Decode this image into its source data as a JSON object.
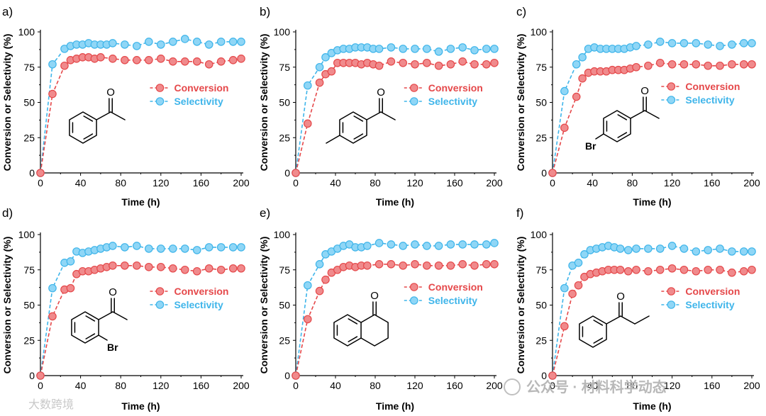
{
  "colors": {
    "conversion": "#e5484a",
    "conversion_fill": "#f08a8c",
    "selectivity": "#3fb5ea",
    "selectivity_fill": "#8fd6f6"
  },
  "watermarks": {
    "wechat": "公众号 · 材料科学动态",
    "corner": "大数跨境"
  },
  "chart_data": [
    {
      "panel": "a)",
      "type": "line",
      "xlabel": "Time (h)",
      "ylabel": "Conversion or Selectivity (%)",
      "xlim": [
        0,
        200
      ],
      "ylim": [
        0,
        100
      ],
      "xticks": [
        "0",
        "40",
        "80",
        "120",
        "160",
        "200"
      ],
      "yticks": [
        "0",
        "25",
        "50",
        "75",
        "100"
      ],
      "legend": [
        "Conversion",
        "Selectivity"
      ],
      "molecule": "acetophenone",
      "series": [
        {
          "name": "Conversion",
          "x": [
            0,
            12,
            24,
            30,
            36,
            42,
            48,
            54,
            60,
            72,
            84,
            96,
            108,
            120,
            132,
            144,
            156,
            168,
            180,
            192,
            200
          ],
          "y": [
            0,
            56,
            76,
            80,
            81,
            82,
            82,
            81,
            82,
            81,
            80,
            80,
            80,
            81,
            79,
            79,
            79,
            77,
            79,
            80,
            81
          ]
        },
        {
          "name": "Selectivity",
          "x": [
            0,
            12,
            24,
            30,
            36,
            42,
            48,
            54,
            60,
            66,
            72,
            84,
            96,
            108,
            120,
            132,
            144,
            156,
            168,
            180,
            192,
            200
          ],
          "y": [
            0,
            77,
            88,
            90,
            91,
            91,
            92,
            91,
            91,
            91,
            92,
            91,
            90,
            93,
            91,
            93,
            95,
            93,
            91,
            93,
            93,
            93
          ]
        }
      ]
    },
    {
      "panel": "b)",
      "type": "line",
      "xlabel": "Time (h)",
      "ylabel": "Conversion or Selectivity (%)",
      "xlim": [
        0,
        200
      ],
      "ylim": [
        0,
        100
      ],
      "xticks": [
        "0",
        "40",
        "80",
        "120",
        "160",
        "200"
      ],
      "yticks": [
        "0",
        "25",
        "50",
        "75",
        "100"
      ],
      "legend": [
        "Conversion",
        "Selectivity"
      ],
      "molecule": "4-methylacetophenone",
      "series": [
        {
          "name": "Conversion",
          "x": [
            0,
            12,
            24,
            30,
            36,
            42,
            48,
            54,
            60,
            66,
            72,
            78,
            84,
            96,
            108,
            120,
            132,
            144,
            156,
            168,
            180,
            192,
            200
          ],
          "y": [
            0,
            35,
            64,
            70,
            72,
            78,
            78,
            78,
            78,
            77,
            78,
            77,
            76,
            79,
            78,
            77,
            78,
            76,
            77,
            79,
            77,
            77,
            78
          ]
        },
        {
          "name": "Selectivity",
          "x": [
            0,
            12,
            24,
            30,
            36,
            42,
            48,
            54,
            60,
            66,
            72,
            78,
            84,
            96,
            108,
            120,
            132,
            144,
            156,
            168,
            180,
            192,
            200
          ],
          "y": [
            0,
            62,
            75,
            82,
            85,
            87,
            88,
            88,
            89,
            89,
            89,
            88,
            88,
            89,
            88,
            88,
            88,
            86,
            88,
            89,
            87,
            88,
            88
          ]
        }
      ]
    },
    {
      "panel": "c)",
      "type": "line",
      "xlabel": "Time (h)",
      "ylabel": "Conversion or Selectivity (%)",
      "xlim": [
        0,
        200
      ],
      "ylim": [
        0,
        100
      ],
      "xticks": [
        "0",
        "40",
        "80",
        "120",
        "160",
        "200"
      ],
      "yticks": [
        "0",
        "25",
        "50",
        "75",
        "100"
      ],
      "legend": [
        "Conversion",
        "Selectivity"
      ],
      "molecule": "4-bromoacetophenone",
      "atom_label": "Br",
      "series": [
        {
          "name": "Conversion",
          "x": [
            0,
            12,
            24,
            30,
            36,
            42,
            48,
            54,
            60,
            66,
            72,
            78,
            84,
            96,
            108,
            120,
            132,
            144,
            156,
            168,
            180,
            192,
            200
          ],
          "y": [
            0,
            32,
            54,
            67,
            71,
            72,
            72,
            72,
            73,
            73,
            73,
            74,
            75,
            76,
            78,
            77,
            77,
            77,
            76,
            76,
            77,
            77,
            77
          ]
        },
        {
          "name": "Selectivity",
          "x": [
            0,
            12,
            24,
            30,
            36,
            42,
            48,
            54,
            60,
            66,
            72,
            78,
            84,
            96,
            108,
            120,
            132,
            144,
            156,
            168,
            180,
            192,
            200
          ],
          "y": [
            0,
            58,
            77,
            82,
            88,
            89,
            88,
            88,
            88,
            88,
            88,
            89,
            90,
            91,
            93,
            92,
            92,
            92,
            91,
            90,
            91,
            92,
            92
          ]
        }
      ]
    },
    {
      "panel": "d)",
      "type": "line",
      "xlabel": "Time (h)",
      "ylabel": "Conversion or Selectivity (%)",
      "xlim": [
        0,
        200
      ],
      "ylim": [
        0,
        100
      ],
      "xticks": [
        "0",
        "40",
        "80",
        "120",
        "160",
        "200"
      ],
      "yticks": [
        "0",
        "25",
        "50",
        "75",
        "100"
      ],
      "legend": [
        "Conversion",
        "Selectivity"
      ],
      "molecule": "2-bromoacetophenone",
      "atom_label": "Br",
      "series": [
        {
          "name": "Conversion",
          "x": [
            0,
            12,
            24,
            30,
            36,
            42,
            48,
            54,
            60,
            66,
            72,
            84,
            96,
            108,
            120,
            132,
            144,
            156,
            168,
            180,
            192,
            200
          ],
          "y": [
            0,
            42,
            61,
            62,
            72,
            74,
            74,
            75,
            76,
            77,
            78,
            78,
            78,
            77,
            77,
            76,
            75,
            74,
            76,
            75,
            76,
            76
          ]
        },
        {
          "name": "Selectivity",
          "x": [
            0,
            12,
            24,
            30,
            36,
            42,
            48,
            54,
            60,
            66,
            72,
            84,
            96,
            108,
            120,
            132,
            144,
            156,
            168,
            180,
            192,
            200
          ],
          "y": [
            0,
            62,
            80,
            81,
            88,
            87,
            88,
            89,
            90,
            91,
            92,
            91,
            92,
            90,
            90,
            90,
            90,
            89,
            91,
            91,
            91,
            91
          ]
        }
      ]
    },
    {
      "panel": "e)",
      "type": "line",
      "xlabel": "Time (h)",
      "ylabel": "Conversion or Selectivity (%)",
      "xlim": [
        0,
        200
      ],
      "ylim": [
        0,
        100
      ],
      "xticks": [
        "0",
        "40",
        "80",
        "120",
        "160",
        "200"
      ],
      "yticks": [
        "0",
        "25",
        "50",
        "75",
        "100"
      ],
      "legend": [
        "Conversion",
        "Selectivity"
      ],
      "molecule": "1-tetralone",
      "series": [
        {
          "name": "Conversion",
          "x": [
            0,
            12,
            24,
            30,
            36,
            42,
            48,
            54,
            60,
            66,
            72,
            84,
            96,
            108,
            120,
            132,
            144,
            156,
            168,
            180,
            192,
            200
          ],
          "y": [
            0,
            40,
            60,
            68,
            73,
            75,
            77,
            78,
            77,
            78,
            78,
            79,
            79,
            78,
            79,
            78,
            78,
            78,
            79,
            78,
            79,
            79
          ]
        },
        {
          "name": "Selectivity",
          "x": [
            0,
            12,
            24,
            30,
            36,
            42,
            48,
            54,
            60,
            66,
            72,
            84,
            96,
            108,
            120,
            132,
            144,
            156,
            168,
            180,
            192,
            200
          ],
          "y": [
            0,
            64,
            79,
            86,
            88,
            90,
            92,
            93,
            91,
            91,
            92,
            94,
            93,
            92,
            93,
            92,
            92,
            93,
            93,
            93,
            93,
            94
          ]
        }
      ]
    },
    {
      "panel": "f)",
      "type": "line",
      "xlabel": "Time (h)",
      "ylabel": "Conversion or Selectivity (%)",
      "xlim": [
        0,
        200
      ],
      "ylim": [
        0,
        100
      ],
      "xticks": [
        "0",
        "40",
        "80",
        "120",
        "160",
        "200"
      ],
      "yticks": [
        "0",
        "25",
        "50",
        "75",
        "100"
      ],
      "legend": [
        "Conversion",
        "Selectivity"
      ],
      "molecule": "propiophenone",
      "series": [
        {
          "name": "Conversion",
          "x": [
            0,
            12,
            20,
            26,
            32,
            38,
            44,
            50,
            56,
            62,
            68,
            76,
            84,
            96,
            108,
            120,
            132,
            144,
            156,
            168,
            180,
            192,
            200
          ],
          "y": [
            0,
            35,
            58,
            64,
            70,
            72,
            73,
            74,
            75,
            75,
            75,
            74,
            75,
            74,
            75,
            76,
            75,
            74,
            75,
            75,
            73,
            74,
            75
          ]
        },
        {
          "name": "Selectivity",
          "x": [
            0,
            12,
            20,
            26,
            32,
            38,
            44,
            50,
            56,
            62,
            68,
            76,
            84,
            96,
            108,
            120,
            132,
            144,
            156,
            168,
            180,
            192,
            200
          ],
          "y": [
            0,
            62,
            78,
            80,
            86,
            89,
            90,
            91,
            92,
            91,
            90,
            89,
            90,
            90,
            90,
            92,
            90,
            88,
            89,
            90,
            88,
            88,
            88
          ]
        }
      ]
    }
  ]
}
